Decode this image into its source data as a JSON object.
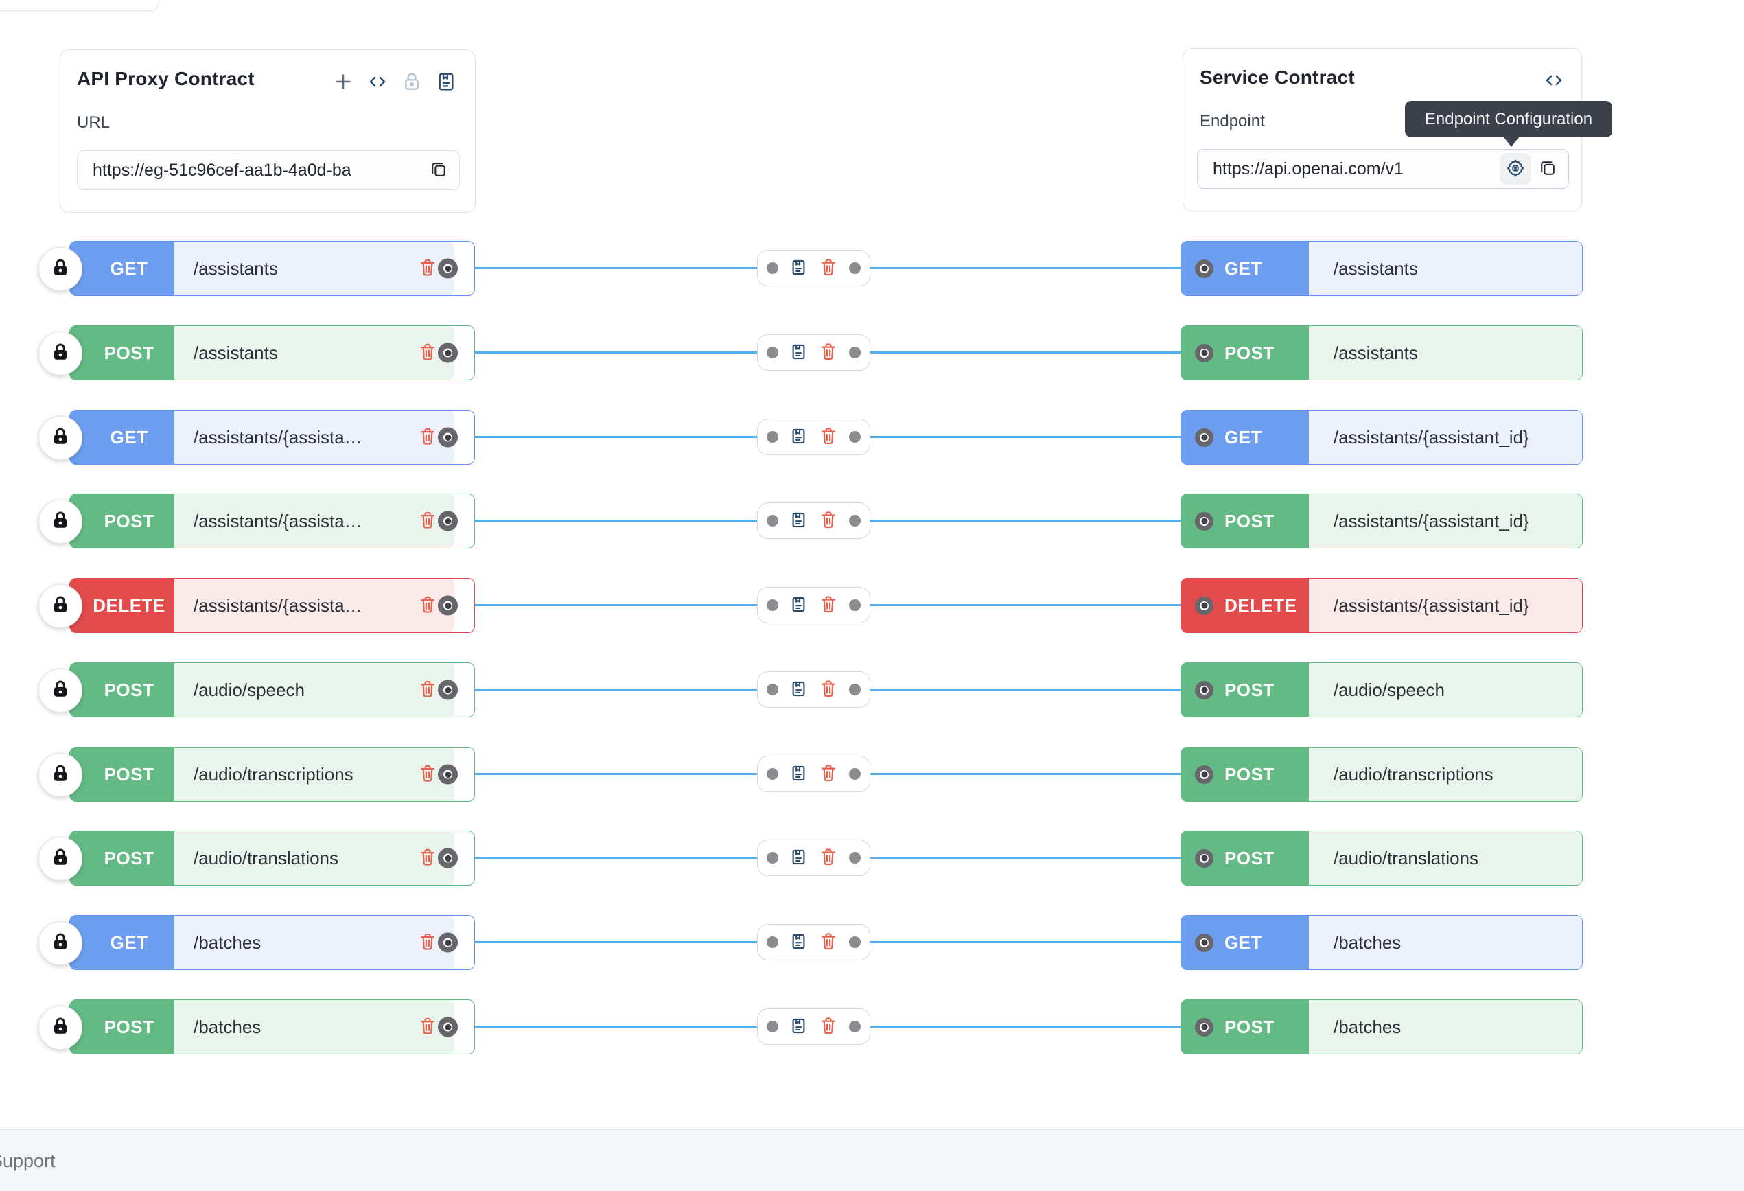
{
  "proxy_card": {
    "title": "API Proxy Contract",
    "url_label": "URL",
    "url_value": "https://eg-51c96cef-aa1b-4a0d-ba",
    "toolbar_icons": [
      "add-icon",
      "code-icon",
      "lock-icon",
      "journal-icon"
    ],
    "copy_icon": "copy-icon"
  },
  "service_card": {
    "title": "Service Contract",
    "header_icon": "code-icon",
    "endpoint_label": "Endpoint",
    "endpoint_value": "https://api.openai.com/v1",
    "config_icon": "gear-icon",
    "copy_icon": "copy-icon",
    "tooltip": "Endpoint Configuration"
  },
  "footer": {
    "support_label": "Support"
  },
  "colors": {
    "connection_line": "#52AEF2",
    "trash": "#E8614D",
    "icon_navy": "#2A4A6B",
    "tooltip_bg": "#3C414B",
    "methods": {
      "GET": {
        "badge": "#6D9EF0",
        "border": "#5B93EE",
        "tint": "#EDF1FC"
      },
      "POST": {
        "badge": "#63BA84",
        "border": "#5BB87D",
        "tint": "#E9F4ED"
      },
      "DELETE": {
        "badge": "#E14B4B",
        "border": "#DB4A4A",
        "tint": "#FAEAEA"
      }
    }
  },
  "rows": [
    {
      "method": "GET",
      "left_path": "/assistants",
      "right_path": "/assistants"
    },
    {
      "method": "POST",
      "left_path": "/assistants",
      "right_path": "/assistants"
    },
    {
      "method": "GET",
      "left_path": "/assistants/{assista…",
      "right_path": "/assistants/{assistant_id}"
    },
    {
      "method": "POST",
      "left_path": "/assistants/{assista…",
      "right_path": "/assistants/{assistant_id}"
    },
    {
      "method": "DELETE",
      "left_path": "/assistants/{assista…",
      "right_path": "/assistants/{assistant_id}"
    },
    {
      "method": "POST",
      "left_path": "/audio/speech",
      "right_path": "/audio/speech"
    },
    {
      "method": "POST",
      "left_path": "/audio/transcriptions",
      "right_path": "/audio/transcriptions"
    },
    {
      "method": "POST",
      "left_path": "/audio/translations",
      "right_path": "/audio/translations"
    },
    {
      "method": "GET",
      "left_path": "/batches",
      "right_path": "/batches"
    },
    {
      "method": "POST",
      "left_path": "/batches",
      "right_path": "/batches"
    }
  ]
}
